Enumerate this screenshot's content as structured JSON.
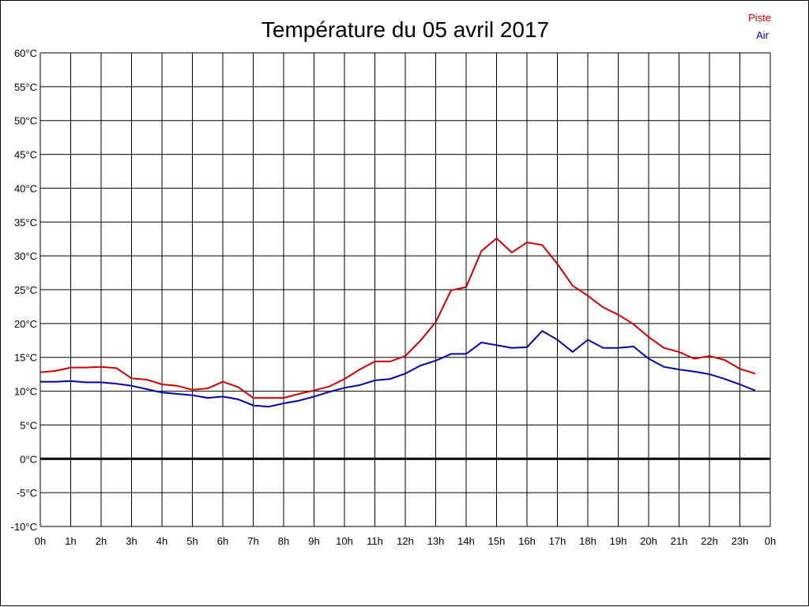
{
  "chart_data": {
    "type": "line",
    "title": "Température du 05 avril 2017",
    "xlabel": "",
    "ylabel": "",
    "xlim": [
      0,
      24
    ],
    "ylim": [
      -10,
      60
    ],
    "grid": true,
    "legend_position": "top-right",
    "x_tick_labels": [
      "0h",
      "1h",
      "2h",
      "3h",
      "4h",
      "5h",
      "6h",
      "7h",
      "8h",
      "9h",
      "10h",
      "11h",
      "12h",
      "13h",
      "14h",
      "15h",
      "16h",
      "17h",
      "18h",
      "19h",
      "20h",
      "21h",
      "22h",
      "23h",
      "0h"
    ],
    "y_ticks": [
      -10,
      -5,
      0,
      5,
      10,
      15,
      20,
      25,
      30,
      35,
      40,
      45,
      50,
      55,
      60
    ],
    "y_tick_labels": [
      "-10°C",
      "-5°C",
      "0°C",
      "5°C",
      "10°C",
      "15°C",
      "20°C",
      "25°C",
      "30°C",
      "35°C",
      "40°C",
      "45°C",
      "50°C",
      "55°C",
      "60°C"
    ],
    "x": [
      0,
      0.5,
      1,
      1.5,
      2,
      2.5,
      3,
      3.5,
      4,
      4.5,
      5,
      5.5,
      6,
      6.5,
      7,
      7.5,
      8,
      8.5,
      9,
      9.5,
      10,
      10.5,
      11,
      11.5,
      12,
      12.5,
      13,
      13.5,
      14,
      14.5,
      15,
      15.5,
      16,
      16.5,
      17,
      17.5,
      18,
      18.5,
      19,
      19.5,
      20,
      20.5,
      21,
      21.5,
      22,
      22.5,
      23,
      23.5
    ],
    "series": [
      {
        "name": "Piste",
        "color": "#cc0000",
        "values": [
          12.8,
          13.0,
          13.5,
          13.5,
          13.6,
          13.4,
          11.9,
          11.7,
          11.0,
          10.8,
          10.2,
          10.4,
          11.4,
          10.6,
          9.0,
          9.0,
          9.0,
          9.6,
          10.1,
          10.7,
          11.8,
          13.2,
          14.4,
          14.4,
          15.2,
          17.5,
          20.2,
          24.9,
          25.4,
          30.7,
          32.6,
          30.5,
          32.0,
          31.6,
          28.8,
          25.6,
          24.1,
          22.4,
          21.3,
          19.9,
          18.0,
          16.4,
          15.8,
          14.8,
          15.2,
          14.6,
          13.3,
          12.6
        ]
      },
      {
        "name": "Air",
        "color": "#0000aa",
        "values": [
          11.4,
          11.4,
          11.5,
          11.3,
          11.3,
          11.1,
          10.8,
          10.3,
          9.8,
          9.6,
          9.4,
          9.0,
          9.2,
          8.8,
          7.9,
          7.7,
          8.2,
          8.6,
          9.2,
          9.9,
          10.5,
          10.9,
          11.6,
          11.8,
          12.6,
          13.8,
          14.5,
          15.5,
          15.5,
          17.2,
          16.8,
          16.4,
          16.5,
          18.9,
          17.6,
          15.8,
          17.6,
          16.4,
          16.4,
          16.6,
          14.8,
          13.6,
          13.2,
          12.9,
          12.5,
          11.8,
          11.0,
          10.1
        ]
      }
    ]
  }
}
